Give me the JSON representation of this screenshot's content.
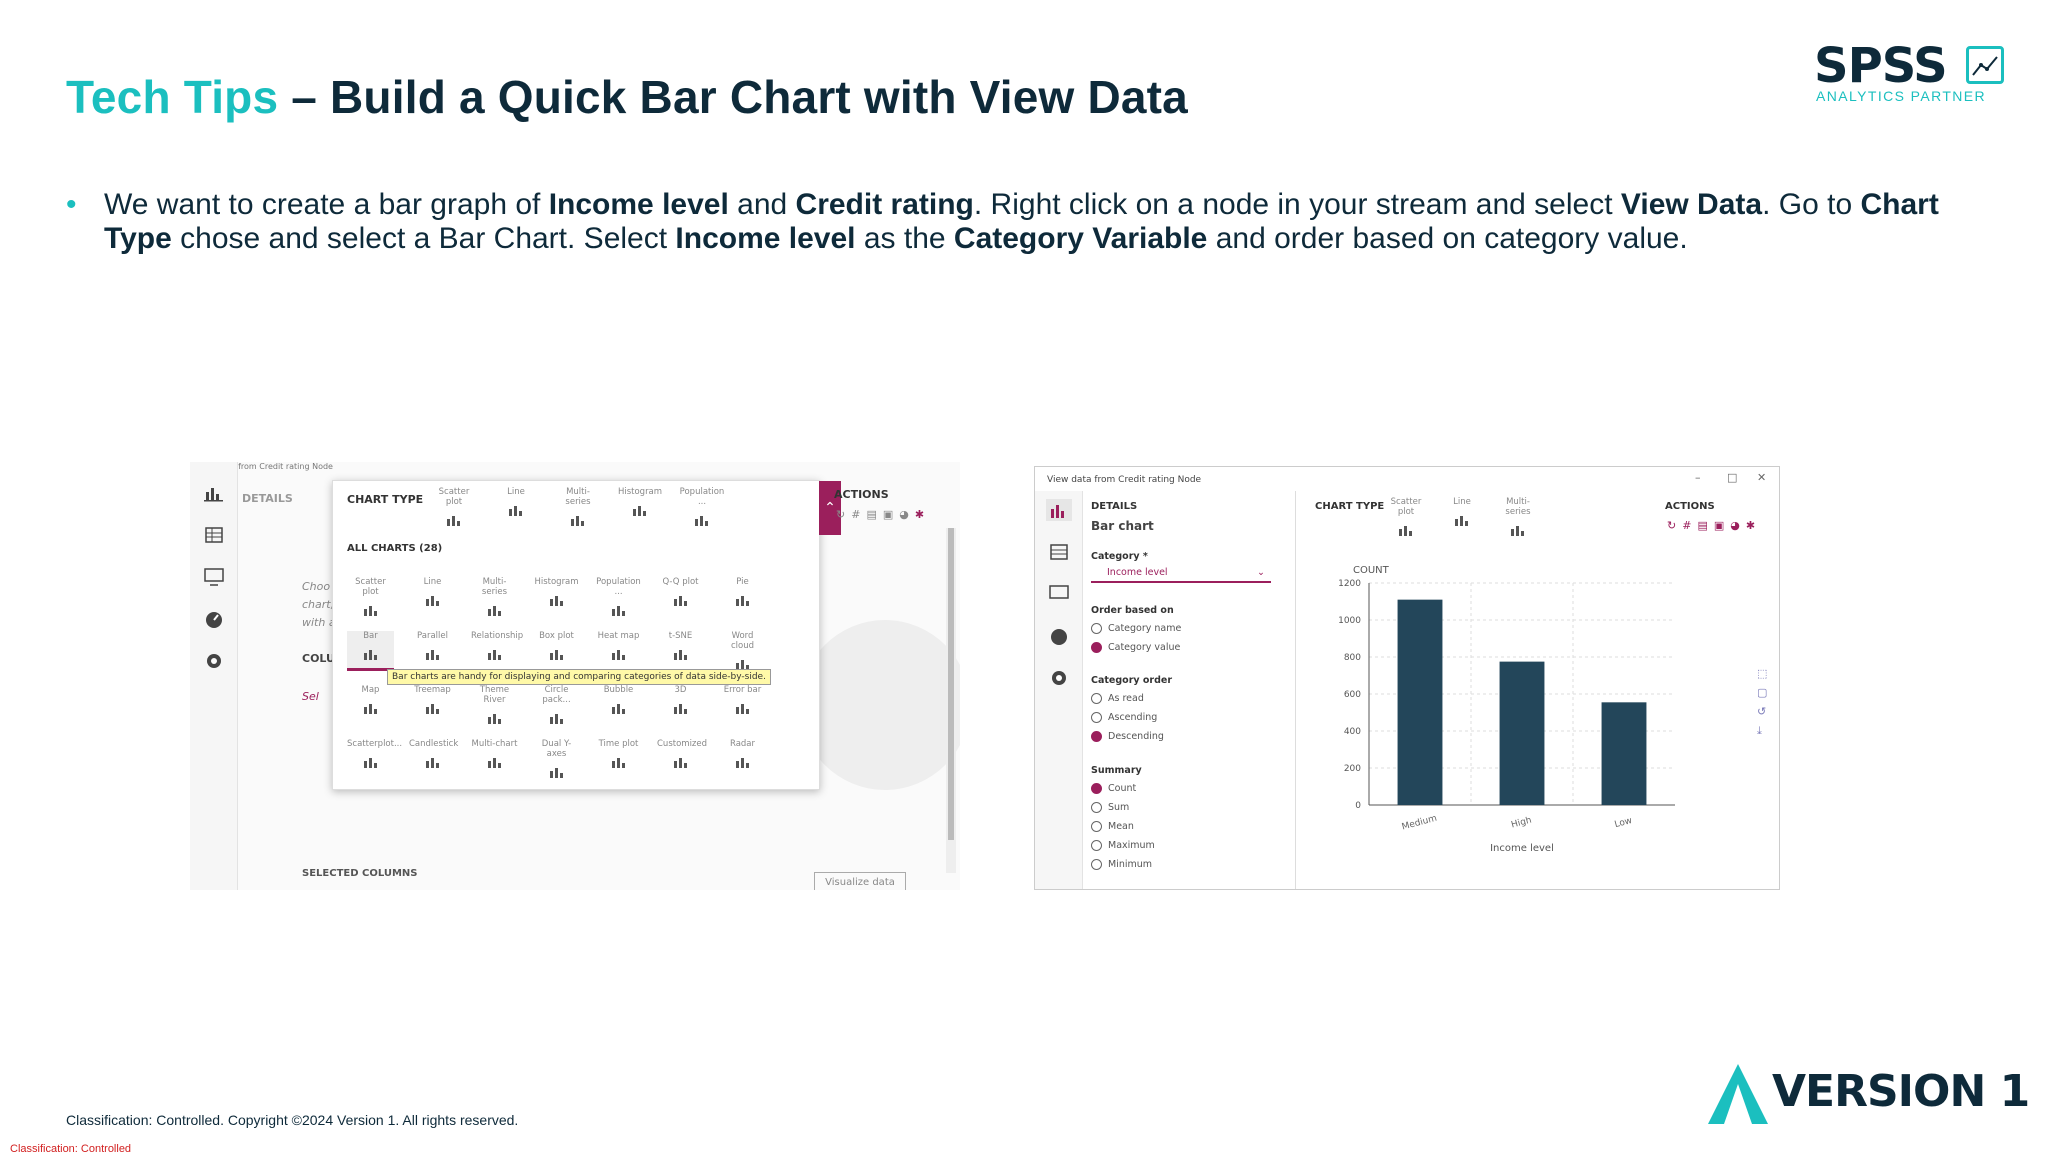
{
  "slide": {
    "title_accent": "Tech Tips",
    "title_rest": "– Build a Quick Bar Chart with View Data",
    "bullet": {
      "t1": "We want to create a bar graph of ",
      "b1": "Income level",
      "t2": " and ",
      "b2": "Credit rating",
      "t3": ". Right click on a node in your stream and select ",
      "b3": "View Data",
      "t4": ". Go to ",
      "b4": "Chart Type",
      "t5": " chose and select a Bar Chart. Select ",
      "b5": "Income level",
      "t6": " as the ",
      "b6": "Category Variable",
      "t7": " and order based on category value."
    },
    "footer": "Classification: Controlled. Copyright ©2024 Version 1. All rights reserved.",
    "classification": "Classification: Controlled",
    "logos": {
      "spss_word": "SPSS",
      "spss_sub": "ANALYTICS PARTNER",
      "version1_word": "VERSION 1"
    },
    "colors": {
      "accent": "#1bbfbf",
      "navy": "#0e2a3a",
      "magenta": "#9b1f5c",
      "bar": "#23465a"
    }
  },
  "left_shot": {
    "window_title": "View data from Credit rating Node",
    "details_label": "DETAILS",
    "chart_type_label": "CHART TYPE",
    "top_types": [
      "Scatter plot",
      "Line",
      "Multi-series",
      "Histogram",
      "Population ..."
    ],
    "all_charts_label": "ALL CHARTS (28)",
    "row1": [
      "Scatter plot",
      "Line",
      "Multi-series",
      "Histogram",
      "Population ...",
      "Q-Q plot",
      "Pie"
    ],
    "row2": [
      "Bar",
      "Parallel",
      "Relationship",
      "Box plot",
      "Heat map",
      "t-SNE",
      "Word cloud"
    ],
    "row3": [
      "Map",
      "Treemap",
      "Theme River",
      "Circle pack...",
      "Bubble",
      "3D",
      "Error bar"
    ],
    "row4": [
      "Scatterplot...",
      "Candlestick",
      "Multi-chart",
      "Dual Y-axes",
      "Time plot",
      "Customized",
      "Radar"
    ],
    "tooltip": "Bar charts are handy for displaying and comparing categories of data side-by-side.",
    "bg_text": [
      "Choo",
      "chart,",
      "with a"
    ],
    "columns_label": "COLU",
    "select_label": "Sel",
    "actions_label": "ACTIONS",
    "selected_columns_label": "SELECTED COLUMNS",
    "visualize_button": "Visualize data"
  },
  "right_shot": {
    "window_title": "View data from Credit rating Node",
    "details_label": "DETAILS",
    "chart_name": "Bar chart",
    "category_label": "Category *",
    "category_value": "Income level",
    "order_based_label": "Order based on",
    "order_based_options": [
      "Category name",
      "Category value"
    ],
    "order_based_selected": 1,
    "category_order_label": "Category order",
    "category_order_options": [
      "As read",
      "Ascending",
      "Descending"
    ],
    "category_order_selected": 2,
    "summary_label": "Summary",
    "summary_options": [
      "Count",
      "Sum",
      "Mean",
      "Maximum",
      "Minimum"
    ],
    "summary_selected": 0,
    "chart_type_label": "CHART TYPE",
    "chart_types": [
      "Scatter plot",
      "Line",
      "Multi-series"
    ],
    "actions_label": "ACTIONS"
  },
  "chart_data": {
    "type": "bar",
    "categories": [
      "Medium",
      "High",
      "Low"
    ],
    "values": [
      1110,
      775,
      555
    ],
    "ylabel": "COUNT",
    "xlabel": "Income level",
    "ylim": [
      0,
      1200
    ],
    "yticks": [
      0,
      200,
      400,
      600,
      800,
      1000,
      1200
    ],
    "grid": true
  }
}
